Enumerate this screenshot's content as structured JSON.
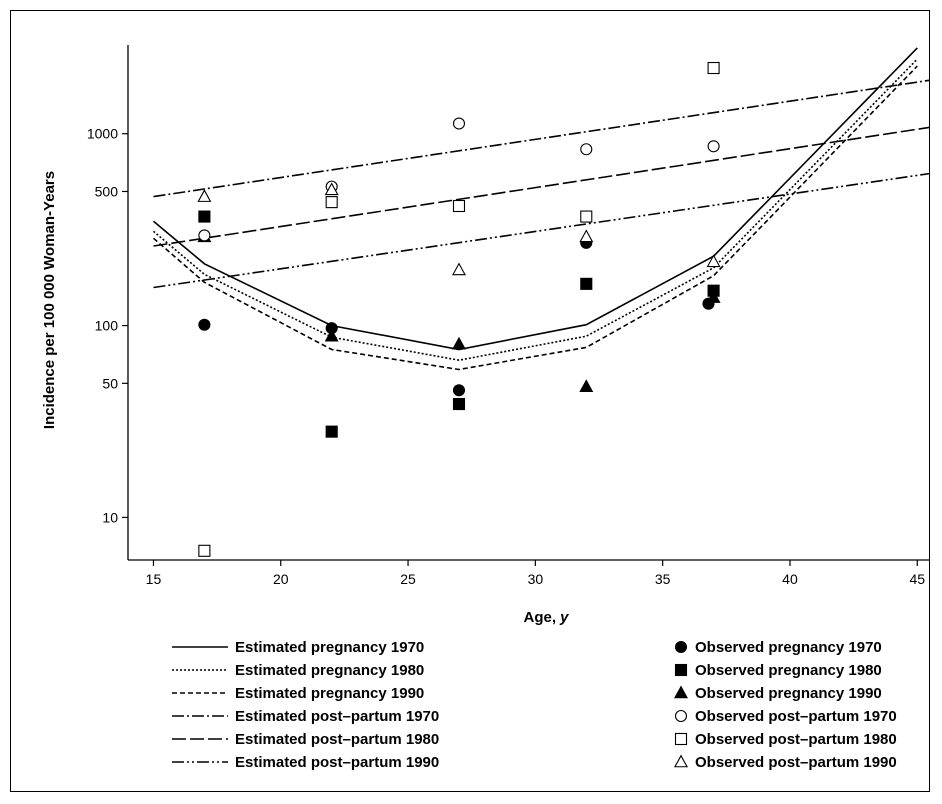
{
  "chart_data": {
    "type": "line",
    "xlabel": "Age, y",
    "ylabel": "Incidence per 100 000 Woman-Years",
    "xlim": [
      14,
      45.5
    ],
    "ylim": [
      6,
      2900
    ],
    "y_scale": "log",
    "x_ticks": [
      15,
      20,
      25,
      30,
      35,
      40,
      45
    ],
    "y_ticks": [
      10,
      50,
      100,
      500,
      1000
    ],
    "grid": false,
    "legend_position": "bottom",
    "series": [
      {
        "name": "Estimated pregnancy 1970",
        "kind": "line",
        "style": "solid",
        "x": [
          15,
          17,
          22,
          27,
          32,
          37,
          45
        ],
        "y": [
          350,
          210,
          100,
          75,
          101,
          230,
          2800
        ]
      },
      {
        "name": "Estimated pregnancy 1980",
        "kind": "line",
        "style": "dotted",
        "x": [
          15,
          17,
          22,
          27,
          32,
          37,
          45
        ],
        "y": [
          310,
          185,
          87,
          66,
          88,
          200,
          2450
        ]
      },
      {
        "name": "Estimated pregnancy 1990",
        "kind": "line",
        "style": "dashed",
        "x": [
          15,
          17,
          22,
          27,
          32,
          37,
          45
        ],
        "y": [
          285,
          168,
          75,
          59,
          77,
          182,
          2250
        ]
      },
      {
        "name": "Estimated post–partum 1970",
        "kind": "line",
        "style": "dashdot",
        "x": [
          15,
          45.5
        ],
        "y": [
          470,
          1900
        ]
      },
      {
        "name": "Estimated post–partum 1980",
        "kind": "line",
        "style": "longdash",
        "x": [
          15,
          45.5
        ],
        "y": [
          260,
          1080
        ]
      },
      {
        "name": "Estimated post–partum 1990",
        "kind": "line",
        "style": "dashdotdot",
        "x": [
          15,
          45.5
        ],
        "y": [
          158,
          620
        ]
      },
      {
        "name": "Observed pregnancy 1970",
        "kind": "marker",
        "marker": "circle",
        "filled": true,
        "x": [
          17,
          22,
          27,
          32,
          36.8
        ],
        "y": [
          101,
          97,
          46,
          270,
          130
        ]
      },
      {
        "name": "Observed pregnancy 1980",
        "kind": "marker",
        "marker": "square",
        "filled": true,
        "x": [
          17,
          22,
          27,
          32,
          37
        ],
        "y": [
          370,
          28,
          39,
          165,
          152
        ]
      },
      {
        "name": "Observed pregnancy 1990",
        "kind": "marker",
        "marker": "triangle",
        "filled": true,
        "x": [
          17,
          22,
          27,
          32,
          37
        ],
        "y": [
          290,
          88,
          80,
          48,
          140
        ]
      },
      {
        "name": "Observed post–partum 1970",
        "kind": "marker",
        "marker": "circle",
        "filled": false,
        "x": [
          17,
          22,
          27,
          32,
          37
        ],
        "y": [
          295,
          530,
          1130,
          830,
          860
        ]
      },
      {
        "name": "Observed post–partum 1980",
        "kind": "marker",
        "marker": "square",
        "filled": false,
        "x": [
          17,
          22,
          27,
          32,
          37
        ],
        "y": [
          6.7,
          440,
          420,
          370,
          2200
        ]
      },
      {
        "name": "Observed post–partum 1990",
        "kind": "marker",
        "marker": "triangle",
        "filled": false,
        "x": [
          17,
          22,
          27,
          32,
          37
        ],
        "y": [
          470,
          510,
          195,
          290,
          215
        ]
      }
    ]
  }
}
